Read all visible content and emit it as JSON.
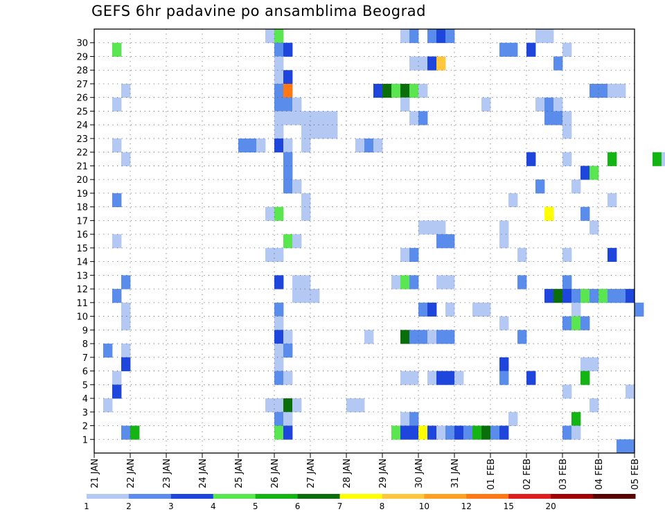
{
  "chart_data": {
    "type": "heatmap",
    "title": "GEFS 6hr padavine po ansamblima Beograd",
    "xlabel": "",
    "ylabel": "",
    "x_ticks": [
      "21 JAN",
      "22 JAN",
      "23 JAN",
      "24 JAN",
      "25 JAN",
      "26 JAN",
      "27 JAN",
      "28 JAN",
      "29 JAN",
      "30 JAN",
      "31 JAN",
      "01 FEB",
      "02 FEB",
      "03 FEB",
      "04 FEB",
      "05 FEB"
    ],
    "y_ticks": [
      1,
      2,
      3,
      4,
      5,
      6,
      7,
      8,
      9,
      10,
      11,
      12,
      13,
      14,
      15,
      16,
      17,
      18,
      19,
      20,
      21,
      22,
      23,
      24,
      25,
      26,
      27,
      28,
      29,
      30
    ],
    "steps_per_day": 4,
    "grid": true,
    "colorbar": {
      "labels": [
        "1",
        "2",
        "3",
        "4",
        "5",
        "6",
        "7",
        "8",
        "10",
        "12",
        "15",
        "20"
      ],
      "colors": [
        "#b4c8f4",
        "#5a8cec",
        "#1e46dc",
        "#5ae650",
        "#14b414",
        "#0a6e0a",
        "#ffff00",
        "#ffc83c",
        "#ffa020",
        "#ff7814",
        "#e11e1e",
        "#a00000",
        "#5a0000"
      ]
    },
    "cells": [
      [
        30,
        24,
        1
      ],
      [
        30,
        25,
        4
      ],
      [
        30,
        39,
        1
      ],
      [
        30,
        40,
        2
      ],
      [
        30,
        42,
        2
      ],
      [
        30,
        43,
        3
      ],
      [
        30,
        44,
        2
      ],
      [
        30,
        54,
        1
      ],
      [
        30,
        55,
        1
      ],
      [
        29,
        7,
        4
      ],
      [
        29,
        25,
        2
      ],
      [
        29,
        26,
        3
      ],
      [
        29,
        50,
        2
      ],
      [
        29,
        51,
        2
      ],
      [
        29,
        53,
        3
      ],
      [
        29,
        57,
        1
      ],
      [
        28,
        25,
        1
      ],
      [
        28,
        40,
        1
      ],
      [
        28,
        41,
        1
      ],
      [
        28,
        42,
        3
      ],
      [
        28,
        43,
        8
      ],
      [
        28,
        56,
        2
      ],
      [
        27,
        25,
        1
      ],
      [
        27,
        26,
        3
      ],
      [
        26,
        8,
        1
      ],
      [
        26,
        25,
        2
      ],
      [
        26,
        26,
        10
      ],
      [
        26,
        36,
        3
      ],
      [
        26,
        37,
        6
      ],
      [
        26,
        38,
        4
      ],
      [
        26,
        39,
        6
      ],
      [
        26,
        40,
        4
      ],
      [
        26,
        41,
        1
      ],
      [
        26,
        60,
        2
      ],
      [
        26,
        61,
        2
      ],
      [
        26,
        62,
        1
      ],
      [
        26,
        63,
        1
      ],
      [
        25,
        7,
        1
      ],
      [
        25,
        25,
        2
      ],
      [
        25,
        26,
        2
      ],
      [
        25,
        27,
        1
      ],
      [
        25,
        39,
        1
      ],
      [
        25,
        48,
        1
      ],
      [
        25,
        54,
        1
      ],
      [
        25,
        55,
        2
      ],
      [
        25,
        56,
        1
      ],
      [
        24,
        25,
        1
      ],
      [
        24,
        26,
        1
      ],
      [
        24,
        27,
        1
      ],
      [
        24,
        28,
        1
      ],
      [
        24,
        29,
        1
      ],
      [
        24,
        30,
        1
      ],
      [
        24,
        31,
        1
      ],
      [
        24,
        40,
        1
      ],
      [
        24,
        41,
        2
      ],
      [
        24,
        55,
        2
      ],
      [
        24,
        56,
        2
      ],
      [
        24,
        57,
        1
      ],
      [
        23,
        25,
        1
      ],
      [
        23,
        28,
        1
      ],
      [
        23,
        29,
        1
      ],
      [
        23,
        30,
        1
      ],
      [
        23,
        31,
        1
      ],
      [
        23,
        57,
        1
      ],
      [
        23,
        70,
        1
      ],
      [
        22,
        7,
        1
      ],
      [
        22,
        21,
        2
      ],
      [
        22,
        22,
        2
      ],
      [
        22,
        23,
        1
      ],
      [
        22,
        25,
        3
      ],
      [
        22,
        26,
        1
      ],
      [
        22,
        28,
        1
      ],
      [
        22,
        34,
        1
      ],
      [
        22,
        35,
        2
      ],
      [
        22,
        36,
        1
      ],
      [
        21,
        8,
        1
      ],
      [
        21,
        26,
        2
      ],
      [
        21,
        53,
        3
      ],
      [
        21,
        57,
        1
      ],
      [
        21,
        62,
        5
      ],
      [
        21,
        67,
        5
      ],
      [
        21,
        68,
        1
      ],
      [
        21,
        72,
        1
      ],
      [
        20,
        26,
        2
      ],
      [
        20,
        59,
        3
      ],
      [
        20,
        60,
        4
      ],
      [
        20,
        71,
        1
      ],
      [
        20,
        72,
        2
      ],
      [
        19,
        26,
        2
      ],
      [
        19,
        27,
        1
      ],
      [
        19,
        54,
        2
      ],
      [
        19,
        58,
        1
      ],
      [
        18,
        7,
        2
      ],
      [
        18,
        28,
        1
      ],
      [
        18,
        51,
        1
      ],
      [
        18,
        62,
        1
      ],
      [
        17,
        24,
        1
      ],
      [
        17,
        25,
        4
      ],
      [
        17,
        28,
        1
      ],
      [
        17,
        55,
        7
      ],
      [
        17,
        59,
        2
      ],
      [
        16,
        41,
        1
      ],
      [
        16,
        42,
        1
      ],
      [
        16,
        43,
        1
      ],
      [
        16,
        50,
        1
      ],
      [
        16,
        60,
        1
      ],
      [
        16,
        73,
        1
      ],
      [
        16,
        71,
        1
      ],
      [
        16,
        72,
        2
      ],
      [
        15,
        7,
        1
      ],
      [
        15,
        26,
        4
      ],
      [
        15,
        27,
        1
      ],
      [
        15,
        43,
        2
      ],
      [
        15,
        44,
        2
      ],
      [
        15,
        50,
        1
      ],
      [
        14,
        24,
        1
      ],
      [
        14,
        25,
        1
      ],
      [
        14,
        39,
        1
      ],
      [
        14,
        40,
        2
      ],
      [
        14,
        52,
        1
      ],
      [
        14,
        57,
        1
      ],
      [
        14,
        62,
        3
      ],
      [
        14,
        69,
        1
      ],
      [
        12,
        8,
        2
      ],
      [
        12,
        25,
        3
      ],
      [
        12,
        27,
        1
      ],
      [
        12,
        28,
        1
      ],
      [
        12,
        38,
        1
      ],
      [
        12,
        39,
        4
      ],
      [
        12,
        40,
        2
      ],
      [
        12,
        43,
        1
      ],
      [
        12,
        44,
        1
      ],
      [
        12,
        52,
        2
      ],
      [
        12,
        57,
        2
      ],
      [
        12,
        70,
        2
      ],
      [
        11,
        7,
        2
      ],
      [
        11,
        27,
        1
      ],
      [
        11,
        28,
        1
      ],
      [
        11,
        29,
        1
      ],
      [
        11,
        55,
        3
      ],
      [
        11,
        56,
        6
      ],
      [
        11,
        57,
        3
      ],
      [
        11,
        58,
        2
      ],
      [
        11,
        59,
        4
      ],
      [
        11,
        60,
        2
      ],
      [
        11,
        61,
        4
      ],
      [
        11,
        62,
        2
      ],
      [
        11,
        63,
        2
      ],
      [
        11,
        64,
        3
      ],
      [
        10,
        8,
        1
      ],
      [
        10,
        25,
        2
      ],
      [
        10,
        41,
        2
      ],
      [
        10,
        42,
        3
      ],
      [
        10,
        44,
        1
      ],
      [
        10,
        47,
        1
      ],
      [
        10,
        48,
        1
      ],
      [
        10,
        58,
        1
      ],
      [
        10,
        65,
        2
      ],
      [
        9,
        8,
        1
      ],
      [
        9,
        25,
        1
      ],
      [
        9,
        50,
        1
      ],
      [
        9,
        57,
        2
      ],
      [
        9,
        58,
        4
      ],
      [
        9,
        59,
        2
      ],
      [
        9,
        69,
        1
      ],
      [
        8,
        25,
        3
      ],
      [
        8,
        26,
        1
      ],
      [
        8,
        35,
        1
      ],
      [
        8,
        39,
        6
      ],
      [
        8,
        40,
        2
      ],
      [
        8,
        41,
        2
      ],
      [
        8,
        42,
        1
      ],
      [
        8,
        43,
        2
      ],
      [
        8,
        44,
        2
      ],
      [
        8,
        52,
        2
      ],
      [
        7,
        6,
        2
      ],
      [
        7,
        8,
        1
      ],
      [
        7,
        25,
        1
      ],
      [
        7,
        26,
        2
      ],
      [
        7,
        70,
        1
      ],
      [
        7,
        71,
        1
      ],
      [
        7,
        73,
        1
      ],
      [
        6,
        8,
        3
      ],
      [
        6,
        25,
        1
      ],
      [
        6,
        50,
        3
      ],
      [
        6,
        59,
        1
      ],
      [
        6,
        60,
        1
      ],
      [
        5,
        7,
        1
      ],
      [
        5,
        25,
        2
      ],
      [
        5,
        26,
        1
      ],
      [
        5,
        39,
        1
      ],
      [
        5,
        40,
        1
      ],
      [
        5,
        42,
        1
      ],
      [
        5,
        43,
        3
      ],
      [
        5,
        44,
        3
      ],
      [
        5,
        45,
        1
      ],
      [
        5,
        50,
        2
      ],
      [
        5,
        53,
        3
      ],
      [
        5,
        59,
        5
      ],
      [
        5,
        77,
        1
      ],
      [
        5,
        78,
        1
      ],
      [
        4,
        7,
        3
      ],
      [
        4,
        57,
        1
      ],
      [
        4,
        64,
        1
      ],
      [
        3,
        6,
        1
      ],
      [
        3,
        24,
        1
      ],
      [
        3,
        25,
        1
      ],
      [
        3,
        26,
        6
      ],
      [
        3,
        27,
        1
      ],
      [
        3,
        33,
        1
      ],
      [
        3,
        34,
        1
      ],
      [
        3,
        60,
        1
      ],
      [
        3,
        78,
        2
      ],
      [
        2,
        25,
        2
      ],
      [
        2,
        26,
        1
      ],
      [
        2,
        39,
        1
      ],
      [
        2,
        40,
        2
      ],
      [
        2,
        51,
        1
      ],
      [
        2,
        58,
        5
      ],
      [
        2,
        70,
        8
      ],
      [
        2,
        71,
        1
      ],
      [
        2,
        72,
        2
      ],
      [
        1,
        8,
        2
      ],
      [
        1,
        9,
        5
      ],
      [
        1,
        25,
        4
      ],
      [
        1,
        26,
        3
      ],
      [
        1,
        38,
        4
      ],
      [
        1,
        39,
        3
      ],
      [
        1,
        40,
        3
      ],
      [
        1,
        41,
        7
      ],
      [
        1,
        42,
        3
      ],
      [
        1,
        43,
        1
      ],
      [
        1,
        44,
        2
      ],
      [
        1,
        45,
        3
      ],
      [
        1,
        46,
        2
      ],
      [
        1,
        47,
        5
      ],
      [
        1,
        48,
        6
      ],
      [
        1,
        49,
        2
      ],
      [
        1,
        50,
        3
      ],
      [
        1,
        57,
        2
      ],
      [
        1,
        58,
        1
      ],
      [
        0,
        63,
        2
      ],
      [
        0,
        64,
        2
      ]
    ]
  }
}
